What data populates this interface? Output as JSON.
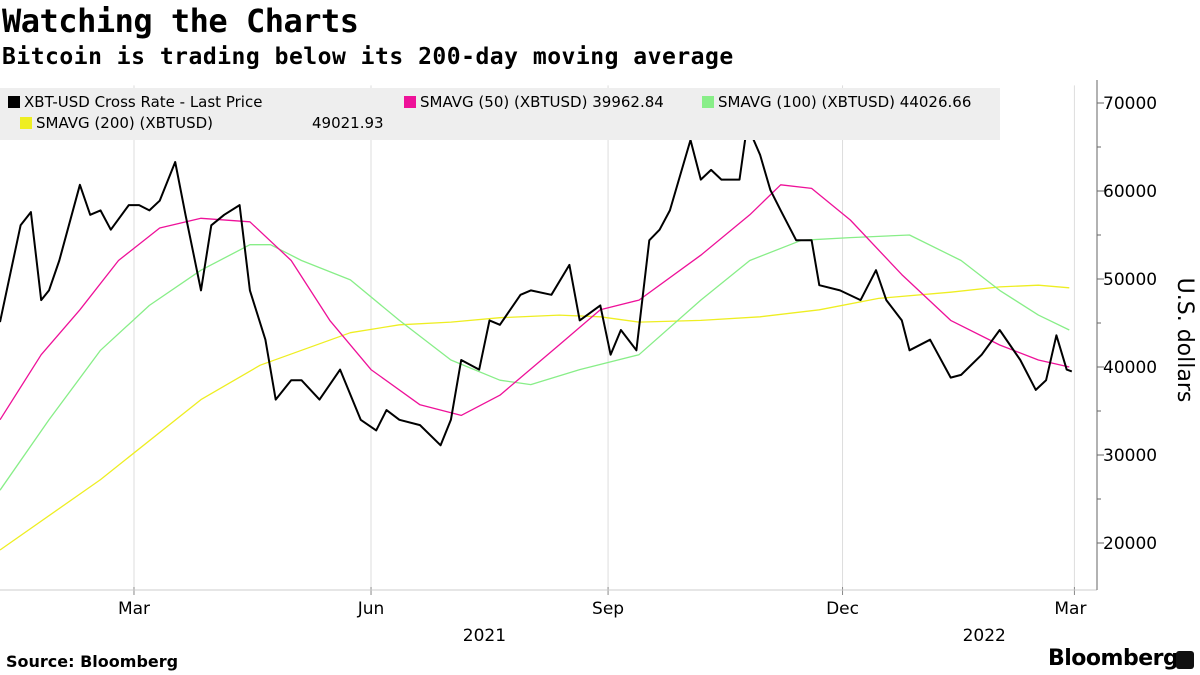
{
  "title": "Watching the Charts",
  "subtitle": "Bitcoin is trading below its 200-day moving average",
  "source": "Source: Bloomberg",
  "brand": "Bloomberg",
  "brand_icon": "bloomberg-terminal-icon",
  "legend": [
    {
      "label": "XBT-USD Cross Rate - Last Price",
      "value": "",
      "color": "#000000"
    },
    {
      "label": "SMAVG (50) (XBTUSD)",
      "value": "39962.84",
      "color": "#ee1199"
    },
    {
      "label": "SMAVG (100) (XBTUSD)",
      "value": "44026.66",
      "color": "#88ee88"
    },
    {
      "label": "SMAVG (200) (XBTUSD)",
      "value": "49021.93",
      "color": "#eeee22"
    }
  ],
  "chart_data": {
    "type": "line",
    "title": "Watching the Charts",
    "subtitle": "Bitcoin is trading below its 200-day moving average",
    "ylabel": "U.S. dollars",
    "xlabel": "",
    "ylim": [
      15000,
      72000
    ],
    "xlim": [
      "2021-01-08",
      "2022-03-02"
    ],
    "y_axis_position": "right",
    "grid": "vertical at month ticks",
    "legend_position": "top",
    "yticks": [
      20000,
      30000,
      40000,
      50000,
      60000,
      70000
    ],
    "xticks": [
      {
        "date": "2021-03-01",
        "label": "Mar"
      },
      {
        "date": "2021-06-01",
        "label": "Jun"
      },
      {
        "date": "2021-09-01",
        "label": "Sep"
      },
      {
        "date": "2021-12-01",
        "label": "Dec"
      },
      {
        "date": "2022-03-01",
        "label": "Mar"
      }
    ],
    "year_labels": [
      {
        "date": "2021-07-15",
        "label": "2021"
      },
      {
        "date": "2022-01-25",
        "label": "2022"
      }
    ],
    "series": [
      {
        "name": "XBT-USD Cross Rate - Last Price",
        "color": "#000000",
        "points": [
          [
            "2021-01-08",
            45100
          ],
          [
            "2021-01-16",
            56100
          ],
          [
            "2021-01-20",
            57600
          ],
          [
            "2021-01-24",
            47600
          ],
          [
            "2021-01-27",
            48700
          ],
          [
            "2021-01-31",
            52100
          ],
          [
            "2021-02-08",
            60700
          ],
          [
            "2021-02-12",
            57300
          ],
          [
            "2021-02-16",
            57800
          ],
          [
            "2021-02-20",
            55600
          ],
          [
            "2021-02-27",
            58400
          ],
          [
            "2021-03-03",
            58400
          ],
          [
            "2021-03-07",
            57800
          ],
          [
            "2021-03-11",
            58900
          ],
          [
            "2021-03-17",
            63300
          ],
          [
            "2021-03-21",
            57300
          ],
          [
            "2021-03-27",
            48700
          ],
          [
            "2021-03-31",
            56100
          ],
          [
            "2021-04-05",
            57300
          ],
          [
            "2021-04-11",
            58400
          ],
          [
            "2021-04-15",
            48700
          ],
          [
            "2021-04-21",
            43100
          ],
          [
            "2021-04-25",
            36300
          ],
          [
            "2021-05-01",
            38500
          ],
          [
            "2021-05-05",
            38500
          ],
          [
            "2021-05-12",
            36300
          ],
          [
            "2021-05-20",
            39700
          ],
          [
            "2021-05-28",
            34000
          ],
          [
            "2021-06-03",
            32800
          ],
          [
            "2021-06-07",
            35100
          ],
          [
            "2021-06-12",
            34000
          ],
          [
            "2021-06-20",
            33400
          ],
          [
            "2021-06-28",
            31100
          ],
          [
            "2021-07-02",
            34000
          ],
          [
            "2021-07-06",
            40800
          ],
          [
            "2021-07-13",
            39700
          ],
          [
            "2021-07-17",
            45300
          ],
          [
            "2021-07-21",
            44800
          ],
          [
            "2021-07-29",
            48200
          ],
          [
            "2021-08-02",
            48700
          ],
          [
            "2021-08-10",
            48200
          ],
          [
            "2021-08-17",
            51600
          ],
          [
            "2021-08-21",
            45300
          ],
          [
            "2021-08-29",
            47000
          ],
          [
            "2021-09-02",
            41400
          ],
          [
            "2021-09-06",
            44200
          ],
          [
            "2021-09-12",
            41900
          ],
          [
            "2021-09-17",
            54400
          ],
          [
            "2021-09-21",
            55600
          ],
          [
            "2021-09-25",
            57800
          ],
          [
            "2021-10-03",
            65800
          ],
          [
            "2021-10-07",
            61300
          ],
          [
            "2021-10-11",
            62400
          ],
          [
            "2021-10-15",
            61300
          ],
          [
            "2021-10-22",
            61300
          ],
          [
            "2021-10-25",
            67500
          ],
          [
            "2021-10-30",
            64100
          ],
          [
            "2021-11-03",
            60100
          ],
          [
            "2021-11-07",
            57800
          ],
          [
            "2021-11-13",
            54400
          ],
          [
            "2021-11-19",
            54400
          ],
          [
            "2021-11-22",
            49300
          ],
          [
            "2021-11-30",
            48700
          ],
          [
            "2021-12-08",
            47600
          ],
          [
            "2021-12-14",
            51000
          ],
          [
            "2021-12-18",
            47600
          ],
          [
            "2021-12-24",
            45300
          ],
          [
            "2021-12-27",
            41900
          ],
          [
            "2022-01-04",
            43100
          ],
          [
            "2022-01-12",
            38800
          ],
          [
            "2022-01-16",
            39100
          ],
          [
            "2022-01-24",
            41400
          ],
          [
            "2022-01-31",
            44200
          ],
          [
            "2022-02-08",
            40800
          ],
          [
            "2022-02-14",
            37400
          ],
          [
            "2022-02-18",
            38500
          ],
          [
            "2022-02-22",
            43600
          ],
          [
            "2022-02-26",
            39700
          ],
          [
            "2022-02-28",
            39500
          ]
        ]
      },
      {
        "name": "SMAVG (50) (XBTUSD)",
        "color": "#ee1199",
        "points": [
          [
            "2021-01-08",
            34000
          ],
          [
            "2021-01-24",
            41400
          ],
          [
            "2021-02-08",
            46500
          ],
          [
            "2021-02-23",
            52100
          ],
          [
            "2021-03-11",
            55800
          ],
          [
            "2021-03-27",
            56900
          ],
          [
            "2021-04-15",
            56500
          ],
          [
            "2021-05-01",
            52100
          ],
          [
            "2021-05-16",
            45300
          ],
          [
            "2021-06-01",
            39700
          ],
          [
            "2021-06-20",
            35700
          ],
          [
            "2021-07-06",
            34500
          ],
          [
            "2021-07-21",
            36800
          ],
          [
            "2021-08-13",
            42500
          ],
          [
            "2021-08-29",
            46500
          ],
          [
            "2021-09-13",
            47600
          ],
          [
            "2021-10-07",
            52700
          ],
          [
            "2021-10-26",
            57300
          ],
          [
            "2021-11-07",
            60700
          ],
          [
            "2021-11-19",
            60300
          ],
          [
            "2021-12-04",
            56700
          ],
          [
            "2021-12-24",
            50500
          ],
          [
            "2022-01-12",
            45300
          ],
          [
            "2022-01-31",
            42500
          ],
          [
            "2022-02-15",
            40800
          ],
          [
            "2022-02-27",
            40000
          ]
        ]
      },
      {
        "name": "SMAVG (100) (XBTUSD)",
        "color": "#88ee88",
        "points": [
          [
            "2021-01-08",
            26000
          ],
          [
            "2021-01-27",
            34000
          ],
          [
            "2021-02-16",
            41900
          ],
          [
            "2021-03-07",
            47000
          ],
          [
            "2021-03-27",
            51000
          ],
          [
            "2021-04-15",
            53900
          ],
          [
            "2021-04-23",
            53900
          ],
          [
            "2021-05-05",
            52100
          ],
          [
            "2021-05-24",
            49900
          ],
          [
            "2021-06-12",
            45300
          ],
          [
            "2021-07-02",
            40800
          ],
          [
            "2021-07-21",
            38500
          ],
          [
            "2021-08-02",
            38000
          ],
          [
            "2021-08-21",
            39700
          ],
          [
            "2021-09-13",
            41400
          ],
          [
            "2021-10-07",
            47600
          ],
          [
            "2021-10-26",
            52100
          ],
          [
            "2021-11-15",
            54400
          ],
          [
            "2021-12-04",
            54700
          ],
          [
            "2021-12-27",
            55000
          ],
          [
            "2022-01-16",
            52100
          ],
          [
            "2022-01-31",
            48700
          ],
          [
            "2022-02-15",
            45900
          ],
          [
            "2022-02-27",
            44200
          ]
        ]
      },
      {
        "name": "SMAVG (200) (XBTUSD)",
        "color": "#eeee22",
        "points": [
          [
            "2021-01-08",
            19200
          ],
          [
            "2021-02-16",
            27200
          ],
          [
            "2021-03-27",
            36300
          ],
          [
            "2021-04-19",
            40200
          ],
          [
            "2021-05-05",
            41900
          ],
          [
            "2021-05-24",
            43900
          ],
          [
            "2021-06-12",
            44800
          ],
          [
            "2021-07-02",
            45100
          ],
          [
            "2021-07-21",
            45600
          ],
          [
            "2021-08-13",
            45900
          ],
          [
            "2021-08-29",
            45700
          ],
          [
            "2021-09-13",
            45100
          ],
          [
            "2021-10-07",
            45300
          ],
          [
            "2021-10-30",
            45700
          ],
          [
            "2021-11-22",
            46500
          ],
          [
            "2021-12-15",
            47800
          ],
          [
            "2022-01-12",
            48500
          ],
          [
            "2022-01-31",
            49100
          ],
          [
            "2022-02-15",
            49300
          ],
          [
            "2022-02-27",
            49000
          ]
        ]
      }
    ]
  }
}
